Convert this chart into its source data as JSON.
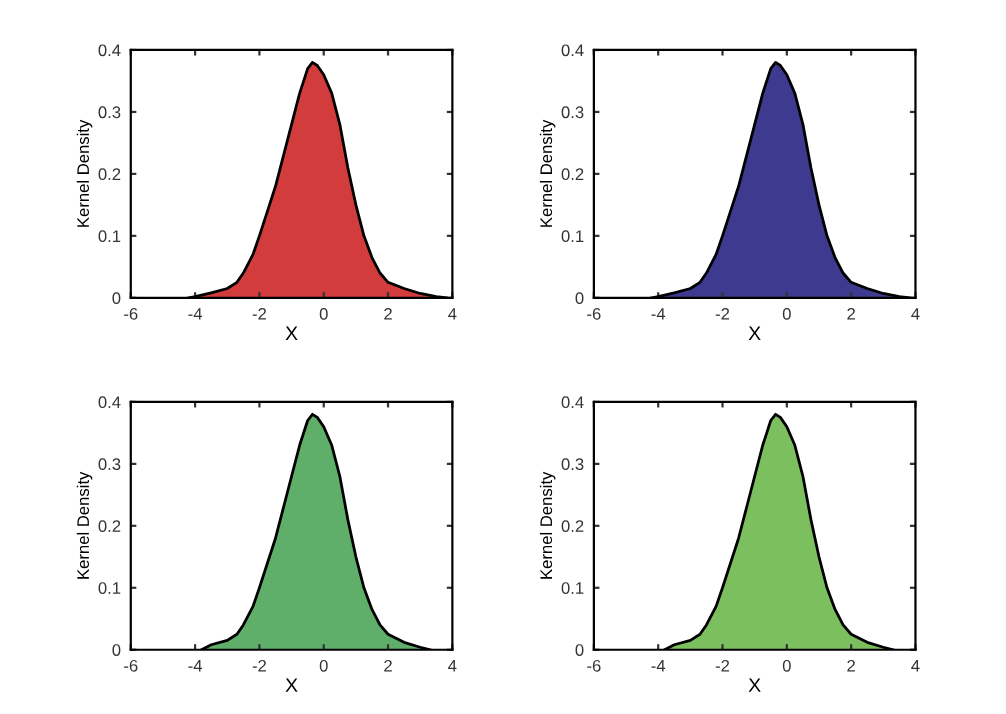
{
  "chart_data": [
    {
      "type": "area",
      "xlabel": "X",
      "ylabel": "Kernel Density",
      "xlim": [
        -6,
        4
      ],
      "ylim": [
        0,
        0.4
      ],
      "xticks": [
        -6,
        -4,
        -2,
        0,
        2,
        4
      ],
      "yticks": [
        0,
        0.1,
        0.2,
        0.3,
        0.4
      ],
      "grid": false,
      "legend": false,
      "x": [
        -4.2,
        -4,
        -3.5,
        -3,
        -2.7,
        -2.5,
        -2.2,
        -2,
        -1.75,
        -1.5,
        -1.25,
        -1,
        -0.75,
        -0.5,
        -0.35,
        -0.2,
        0,
        0.25,
        0.5,
        0.75,
        1,
        1.25,
        1.5,
        1.75,
        2,
        2.5,
        3,
        3.5,
        3.8
      ],
      "series": [
        {
          "color": "#d33c3c",
          "values": [
            0,
            0.002,
            0.008,
            0.015,
            0.025,
            0.04,
            0.07,
            0.1,
            0.14,
            0.18,
            0.23,
            0.28,
            0.33,
            0.37,
            0.38,
            0.375,
            0.36,
            0.33,
            0.28,
            0.21,
            0.15,
            0.1,
            0.065,
            0.04,
            0.025,
            0.015,
            0.007,
            0.002,
            0
          ]
        }
      ]
    },
    {
      "type": "area",
      "xlabel": "X",
      "ylabel": "Kernel Density",
      "xlim": [
        -6,
        4
      ],
      "ylim": [
        0,
        0.4
      ],
      "xticks": [
        -6,
        -4,
        -2,
        0,
        2,
        4
      ],
      "yticks": [
        0,
        0.1,
        0.2,
        0.3,
        0.4
      ],
      "grid": false,
      "legend": false,
      "x": [
        -4.2,
        -4,
        -3.5,
        -3,
        -2.7,
        -2.5,
        -2.2,
        -2,
        -1.75,
        -1.5,
        -1.25,
        -1,
        -0.75,
        -0.5,
        -0.35,
        -0.2,
        0,
        0.25,
        0.5,
        0.75,
        1,
        1.25,
        1.5,
        1.75,
        2,
        2.5,
        3,
        3.5,
        3.8
      ],
      "series": [
        {
          "color": "#3d3a8f",
          "values": [
            0,
            0.002,
            0.008,
            0.015,
            0.025,
            0.04,
            0.07,
            0.1,
            0.14,
            0.18,
            0.23,
            0.28,
            0.33,
            0.37,
            0.38,
            0.375,
            0.36,
            0.33,
            0.28,
            0.21,
            0.15,
            0.1,
            0.065,
            0.04,
            0.025,
            0.015,
            0.007,
            0.002,
            0
          ]
        }
      ]
    },
    {
      "type": "area",
      "xlabel": "X",
      "ylabel": "Kernel Density",
      "xlim": [
        -6,
        4
      ],
      "ylim": [
        0,
        0.4
      ],
      "xticks": [
        -6,
        -4,
        -2,
        0,
        2,
        4
      ],
      "yticks": [
        0,
        0.1,
        0.2,
        0.3,
        0.4
      ],
      "grid": false,
      "legend": false,
      "x": [
        -3.8,
        -3.5,
        -3,
        -2.7,
        -2.5,
        -2.2,
        -2,
        -1.75,
        -1.5,
        -1.25,
        -1,
        -0.75,
        -0.5,
        -0.35,
        -0.2,
        0,
        0.25,
        0.5,
        0.75,
        1,
        1.25,
        1.5,
        1.75,
        2,
        2.5,
        3,
        3.3
      ],
      "series": [
        {
          "color": "#5fae6a",
          "values": [
            0,
            0.008,
            0.015,
            0.025,
            0.04,
            0.07,
            0.1,
            0.14,
            0.18,
            0.23,
            0.28,
            0.33,
            0.37,
            0.38,
            0.375,
            0.36,
            0.33,
            0.28,
            0.21,
            0.15,
            0.1,
            0.065,
            0.04,
            0.025,
            0.012,
            0.004,
            0
          ]
        }
      ]
    },
    {
      "type": "area",
      "xlabel": "X",
      "ylabel": "Kernel Density",
      "xlim": [
        -6,
        4
      ],
      "ylim": [
        0,
        0.4
      ],
      "xticks": [
        -6,
        -4,
        -2,
        0,
        2,
        4
      ],
      "yticks": [
        0,
        0.1,
        0.2,
        0.3,
        0.4
      ],
      "grid": false,
      "legend": false,
      "x": [
        -3.8,
        -3.5,
        -3,
        -2.7,
        -2.5,
        -2.2,
        -2,
        -1.75,
        -1.5,
        -1.25,
        -1,
        -0.75,
        -0.5,
        -0.35,
        -0.2,
        0,
        0.25,
        0.5,
        0.75,
        1,
        1.25,
        1.5,
        1.75,
        2,
        2.5,
        3,
        3.3
      ],
      "series": [
        {
          "color": "#7cbf5f",
          "values": [
            0,
            0.008,
            0.015,
            0.025,
            0.04,
            0.07,
            0.1,
            0.14,
            0.18,
            0.23,
            0.28,
            0.33,
            0.37,
            0.38,
            0.375,
            0.36,
            0.33,
            0.28,
            0.21,
            0.15,
            0.1,
            0.065,
            0.04,
            0.025,
            0.012,
            0.004,
            0
          ]
        }
      ]
    }
  ]
}
